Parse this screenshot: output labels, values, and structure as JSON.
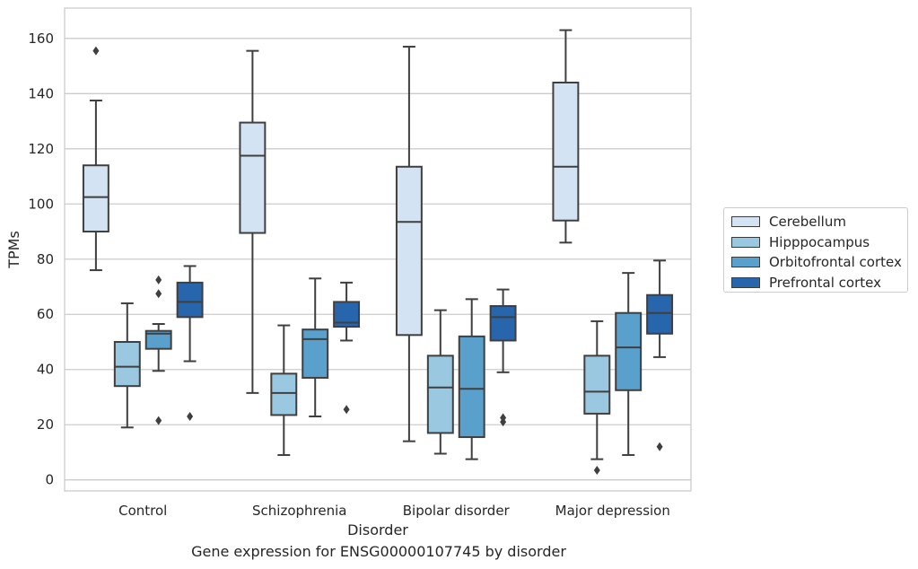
{
  "chart_data": {
    "type": "box",
    "xlabel": "Disorder",
    "ylabel": "TPMs",
    "caption": "Gene expression for ENSG00000107745 by disorder",
    "categories": [
      "Control",
      "Schizophrenia",
      "Bipolar disorder",
      "Major depression"
    ],
    "ylim": [
      -4,
      171
    ],
    "yticks": [
      0,
      20,
      40,
      60,
      80,
      100,
      120,
      140,
      160
    ],
    "grid": "horizontal",
    "legend_position": "right",
    "series": [
      {
        "name": "Cerebellum",
        "color": "#d3e3f3",
        "boxes": [
          {
            "whislo": 76,
            "q1": 90,
            "med": 102.5,
            "q3": 114,
            "whishi": 137.5,
            "fliers": [
              155.5
            ]
          },
          {
            "whislo": 31.5,
            "q1": 89.5,
            "med": 117.5,
            "q3": 129.5,
            "whishi": 155.5,
            "fliers": []
          },
          {
            "whislo": 14,
            "q1": 52.5,
            "med": 93.5,
            "q3": 113.5,
            "whishi": 157,
            "fliers": []
          },
          {
            "whislo": 86,
            "q1": 94,
            "med": 113.5,
            "q3": 144,
            "whishi": 163,
            "fliers": []
          }
        ]
      },
      {
        "name": "Hipppocampus",
        "color": "#9ac8e0",
        "boxes": [
          {
            "whislo": 19,
            "q1": 34,
            "med": 41,
            "q3": 50,
            "whishi": 64,
            "fliers": []
          },
          {
            "whislo": 9,
            "q1": 23.5,
            "med": 31.5,
            "q3": 38.5,
            "whishi": 56,
            "fliers": []
          },
          {
            "whislo": 9.5,
            "q1": 17,
            "med": 33.5,
            "q3": 45,
            "whishi": 61.5,
            "fliers": []
          },
          {
            "whislo": 7.5,
            "q1": 24,
            "med": 32,
            "q3": 45,
            "whishi": 57.5,
            "fliers": [
              3.5
            ]
          }
        ]
      },
      {
        "name": "Orbitofrontal cortex",
        "color": "#5aa0cd",
        "boxes": [
          {
            "whislo": 39.5,
            "q1": 47.5,
            "med": 53,
            "q3": 54,
            "whishi": 56.5,
            "fliers": [
              72.5,
              67.5,
              21.5
            ]
          },
          {
            "whislo": 23,
            "q1": 37,
            "med": 51,
            "q3": 54.5,
            "whishi": 73,
            "fliers": []
          },
          {
            "whislo": 7.5,
            "q1": 15.5,
            "med": 33,
            "q3": 52,
            "whishi": 65.5,
            "fliers": []
          },
          {
            "whislo": 9,
            "q1": 32.5,
            "med": 48,
            "q3": 60.5,
            "whishi": 75,
            "fliers": []
          }
        ]
      },
      {
        "name": "Prefrontal cortex",
        "color": "#2766ac",
        "boxes": [
          {
            "whislo": 43,
            "q1": 59,
            "med": 64.5,
            "q3": 71.5,
            "whishi": 77.5,
            "fliers": [
              23
            ]
          },
          {
            "whislo": 50.5,
            "q1": 55.5,
            "med": 57,
            "q3": 64.5,
            "whishi": 71.5,
            "fliers": [
              25.5
            ]
          },
          {
            "whislo": 39,
            "q1": 50.5,
            "med": 59,
            "q3": 63,
            "whishi": 69,
            "fliers": [
              22.5,
              21
            ]
          },
          {
            "whislo": 44.5,
            "q1": 53,
            "med": 60.5,
            "q3": 67,
            "whishi": 79.5,
            "fliers": [
              12
            ]
          }
        ]
      }
    ]
  }
}
